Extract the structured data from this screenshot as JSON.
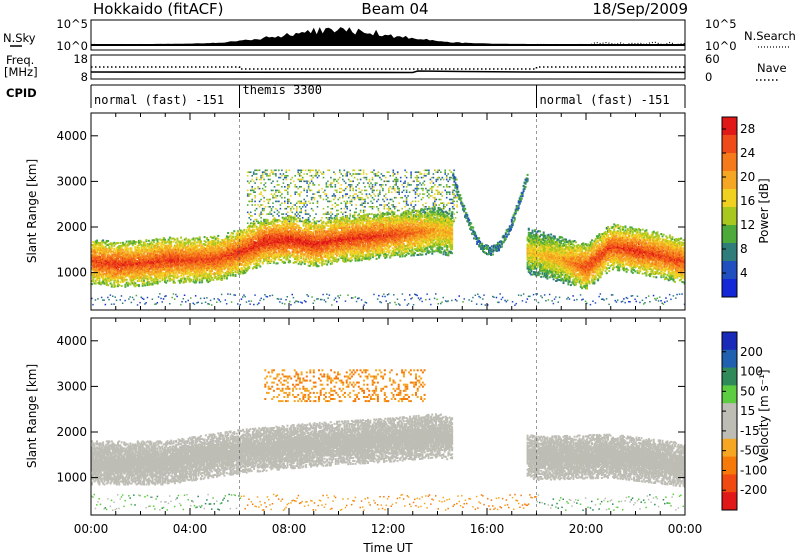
{
  "header": {
    "station": "Hokkaido (fitACF)",
    "beam": "Beam 04",
    "date": "18/Sep/2009"
  },
  "top_strip": {
    "nsky_label": "N.Sky",
    "nsky_ticks": [
      "10^5",
      "10^0"
    ],
    "nsearch_label": "N.Search",
    "nsearch_ticks": [
      "10^5",
      "10^0"
    ],
    "freq_label_1": "Freq.",
    "freq_label_2": "[MHz]",
    "freq_ticks": [
      "18",
      "8"
    ],
    "nave_label": "Nave",
    "nave_ticks": [
      "60",
      "0"
    ],
    "cpid_label": "CPID"
  },
  "cpid_segments": [
    {
      "label": "normal (fast) -151",
      "start_hour": 0,
      "end_hour": 6
    },
    {
      "label": "themis 3300",
      "start_hour": 6,
      "end_hour": 18
    },
    {
      "label": "normal (fast) -151",
      "start_hour": 18,
      "end_hour": 24
    }
  ],
  "colors": {
    "power_scale": [
      "#1428d8",
      "#2050c0",
      "#2f7d7a",
      "#4caa3a",
      "#a8c820",
      "#f0d020",
      "#f5a623",
      "#f57a1a",
      "#ee4a1a",
      "#e01818"
    ],
    "velocity_scale": [
      "#e01818",
      "#f04a10",
      "#f57a0a",
      "#f5a623",
      "#bdbdb5",
      "#bdbdb5",
      "#5ccc40",
      "#2f8a5a",
      "#2060b0",
      "#1a2ab8"
    ],
    "ground": "#bdbdb5"
  },
  "chart_data": [
    {
      "type": "heatmap",
      "title": "",
      "ylabel": "Slant Range [km]",
      "xlabel": "",
      "x_range_hours": [
        0,
        24
      ],
      "ylim": [
        180,
        4500
      ],
      "yticks": [
        "1000",
        "2000",
        "3000",
        "4000"
      ],
      "colorbar": {
        "label": "Power [dB]",
        "ticks": [
          "4",
          "8",
          "12",
          "16",
          "20",
          "24",
          "28"
        ],
        "range": [
          0,
          30
        ]
      },
      "scatter_band": [
        {
          "hour": 0.0,
          "range_km": 1270,
          "power_db": 26
        },
        {
          "hour": 1.0,
          "range_km": 1200,
          "power_db": 27
        },
        {
          "hour": 2.0,
          "range_km": 1230,
          "power_db": 26
        },
        {
          "hour": 3.0,
          "range_km": 1300,
          "power_db": 27
        },
        {
          "hour": 4.0,
          "range_km": 1300,
          "power_db": 26
        },
        {
          "hour": 5.0,
          "range_km": 1320,
          "power_db": 26
        },
        {
          "hour": 6.0,
          "range_km": 1480,
          "power_db": 27
        },
        {
          "hour": 7.0,
          "range_km": 1700,
          "power_db": 28
        },
        {
          "hour": 8.0,
          "range_km": 1750,
          "power_db": 28
        },
        {
          "hour": 9.0,
          "range_km": 1650,
          "power_db": 28
        },
        {
          "hour": 10.0,
          "range_km": 1750,
          "power_db": 27
        },
        {
          "hour": 11.0,
          "range_km": 1800,
          "power_db": 27
        },
        {
          "hour": 12.0,
          "range_km": 1850,
          "power_db": 26
        },
        {
          "hour": 13.0,
          "range_km": 1900,
          "power_db": 24
        },
        {
          "hour": 14.0,
          "range_km": 1950,
          "power_db": 20
        },
        {
          "hour": 18.0,
          "range_km": 1450,
          "power_db": 18
        },
        {
          "hour": 19.0,
          "range_km": 1300,
          "power_db": 20
        },
        {
          "hour": 20.0,
          "range_km": 1150,
          "power_db": 26
        },
        {
          "hour": 21.0,
          "range_km": 1600,
          "power_db": 26
        },
        {
          "hour": 22.0,
          "range_km": 1500,
          "power_db": 27
        },
        {
          "hour": 23.0,
          "range_km": 1400,
          "power_db": 26
        },
        {
          "hour": 24.0,
          "range_km": 1250,
          "power_db": 26
        }
      ]
    },
    {
      "type": "heatmap",
      "title": "",
      "ylabel": "Slant Range [km]",
      "xlabel": "Time UT",
      "x_range_hours": [
        0,
        24
      ],
      "ylim": [
        180,
        4500
      ],
      "yticks": [
        "1000",
        "2000",
        "3000",
        "4000"
      ],
      "xticks": [
        "00:00",
        "04:00",
        "08:00",
        "12:00",
        "16:00",
        "20:00",
        "00:00"
      ],
      "colorbar": {
        "label": "Velocity [m s⁻¹]",
        "ticks": [
          "200",
          "100",
          "50",
          "15",
          "-15",
          "-50",
          "-100",
          "-200"
        ],
        "range": [
          -250,
          250
        ]
      },
      "ground_scatter_band": [
        {
          "hour": 0.0,
          "range_km": 1350
        },
        {
          "hour": 3.0,
          "range_km": 1350
        },
        {
          "hour": 6.0,
          "range_km": 1600
        },
        {
          "hour": 9.0,
          "range_km": 1750
        },
        {
          "hour": 12.0,
          "range_km": 1850
        },
        {
          "hour": 14.0,
          "range_km": 1950
        },
        {
          "hour": 18.0,
          "range_km": 1450
        },
        {
          "hour": 21.0,
          "range_km": 1500
        },
        {
          "hour": 24.0,
          "range_km": 1300
        }
      ]
    }
  ]
}
